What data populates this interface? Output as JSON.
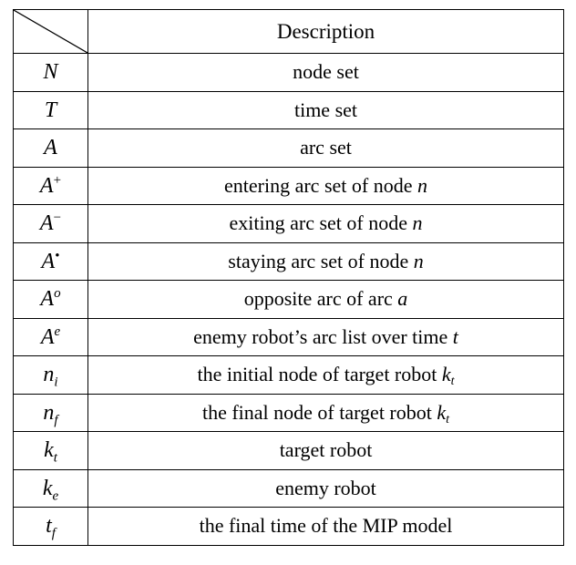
{
  "table": {
    "header": {
      "description": "Description"
    },
    "rows": [
      {
        "symbol": {
          "base": "N",
          "sup": "",
          "sub": ""
        },
        "description": {
          "text": "node set",
          "var": "",
          "var_sub": ""
        }
      },
      {
        "symbol": {
          "base": "T",
          "sup": "",
          "sub": ""
        },
        "description": {
          "text": "time set",
          "var": "",
          "var_sub": ""
        }
      },
      {
        "symbol": {
          "base": "A",
          "sup": "",
          "sub": ""
        },
        "description": {
          "text": "arc set",
          "var": "",
          "var_sub": ""
        }
      },
      {
        "symbol": {
          "base": "A",
          "sup": "+",
          "sub": ""
        },
        "description": {
          "text": "entering arc set of node ",
          "var": "n",
          "var_sub": ""
        }
      },
      {
        "symbol": {
          "base": "A",
          "sup": "−",
          "sub": ""
        },
        "description": {
          "text": "exiting arc set of node ",
          "var": "n",
          "var_sub": ""
        }
      },
      {
        "symbol": {
          "base": "A",
          "sup": "•",
          "sub": ""
        },
        "description": {
          "text": "staying arc set of node ",
          "var": "n",
          "var_sub": ""
        }
      },
      {
        "symbol": {
          "base": "A",
          "sup": "o",
          "sub": ""
        },
        "description": {
          "text": "opposite arc of arc ",
          "var": "a",
          "var_sub": ""
        }
      },
      {
        "symbol": {
          "base": "A",
          "sup": "e",
          "sub": ""
        },
        "description": {
          "text": "enemy robot’s arc list over time ",
          "var": "t",
          "var_sub": ""
        }
      },
      {
        "symbol": {
          "base": "n",
          "sup": "",
          "sub": "i"
        },
        "description": {
          "text": "the initial node of target robot ",
          "var": "k",
          "var_sub": "t"
        }
      },
      {
        "symbol": {
          "base": "n",
          "sup": "",
          "sub": "f"
        },
        "description": {
          "text": "the final node of target robot ",
          "var": "k",
          "var_sub": "t"
        }
      },
      {
        "symbol": {
          "base": "k",
          "sup": "",
          "sub": "t"
        },
        "description": {
          "text": "target robot",
          "var": "",
          "var_sub": ""
        }
      },
      {
        "symbol": {
          "base": "k",
          "sup": "",
          "sub": "e"
        },
        "description": {
          "text": "enemy robot",
          "var": "",
          "var_sub": ""
        }
      },
      {
        "symbol": {
          "base": "t",
          "sup": "",
          "sub": "f"
        },
        "description": {
          "text": "the final time of the MIP model",
          "var": "",
          "var_sub": ""
        }
      }
    ]
  }
}
